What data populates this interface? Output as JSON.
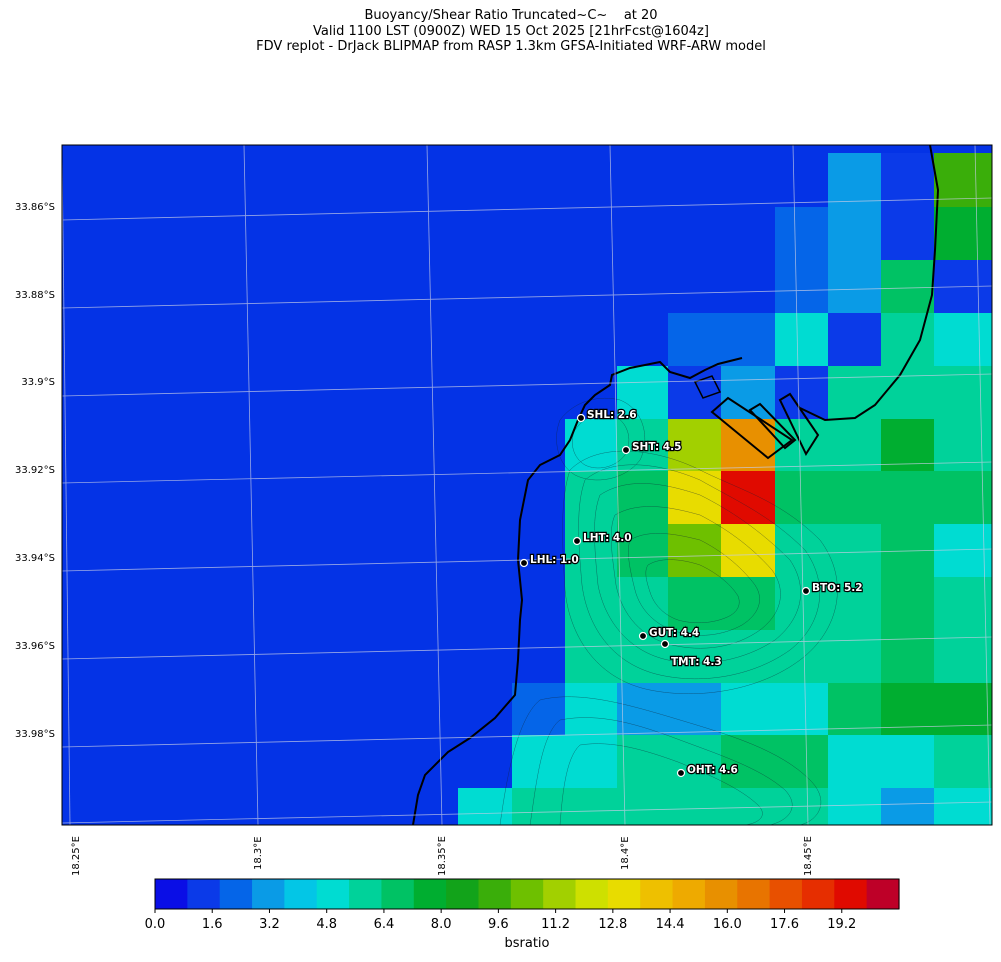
{
  "title": {
    "line1": "Buoyancy/Shear Ratio Truncated~C~    at 20",
    "line2": "Valid 1100 LST (0900Z) WED 15 Oct 2025 [21hrFcst@1604z]",
    "line3": "FDV replot - DrJack BLIPMAP from RASP 1.3km GFSA-Initiated WRF-ARW model"
  },
  "map": {
    "latitude_labels": [
      "33.86°S",
      "33.88°S",
      "33.9°S",
      "33.92°S",
      "33.94°S",
      "33.96°S",
      "33.98°S"
    ],
    "longitude_labels": [
      "18.25°E",
      "18.3°E",
      "18.35°E",
      "18.4°E",
      "18.45°E"
    ],
    "ocean_color": "#0433e6",
    "sites": [
      {
        "code": "SHL",
        "label": "SHL: 2.6",
        "value": 2.6
      },
      {
        "code": "SHT",
        "label": "SHT: 4.5",
        "value": 4.5
      },
      {
        "code": "LHT",
        "label": "LHT: 4.0",
        "value": 4.0
      },
      {
        "code": "LHL",
        "label": "LHL: 1.0",
        "value": 1.0
      },
      {
        "code": "BTO",
        "label": "BTO: 5.2",
        "value": 5.2
      },
      {
        "code": "GUT",
        "label": "GUT: 4.4",
        "value": 4.4
      },
      {
        "code": "TMT",
        "label": "TMT: 4.3",
        "value": 4.3
      },
      {
        "code": "OHT",
        "label": "OHT: 4.6",
        "value": 4.6
      }
    ]
  },
  "colorbar": {
    "label": "bsratio",
    "ticks": [
      "0.0",
      "1.6",
      "3.2",
      "4.8",
      "6.4",
      "8.0",
      "9.6",
      "11.2",
      "12.8",
      "14.4",
      "16.0",
      "17.6",
      "19.2"
    ],
    "colors": [
      "#0a0ee6",
      "#0b3ae8",
      "#0565e8",
      "#0a9be6",
      "#03c6e6",
      "#00dcd2",
      "#00d29a",
      "#00c264",
      "#00ae30",
      "#12a31a",
      "#3aae0a",
      "#6ec000",
      "#a2d000",
      "#cee000",
      "#e8dc00",
      "#eec000",
      "#eeaa00",
      "#e89000",
      "#e87400",
      "#e85000",
      "#e62e00",
      "#e00a00",
      "#be0028"
    ]
  }
}
